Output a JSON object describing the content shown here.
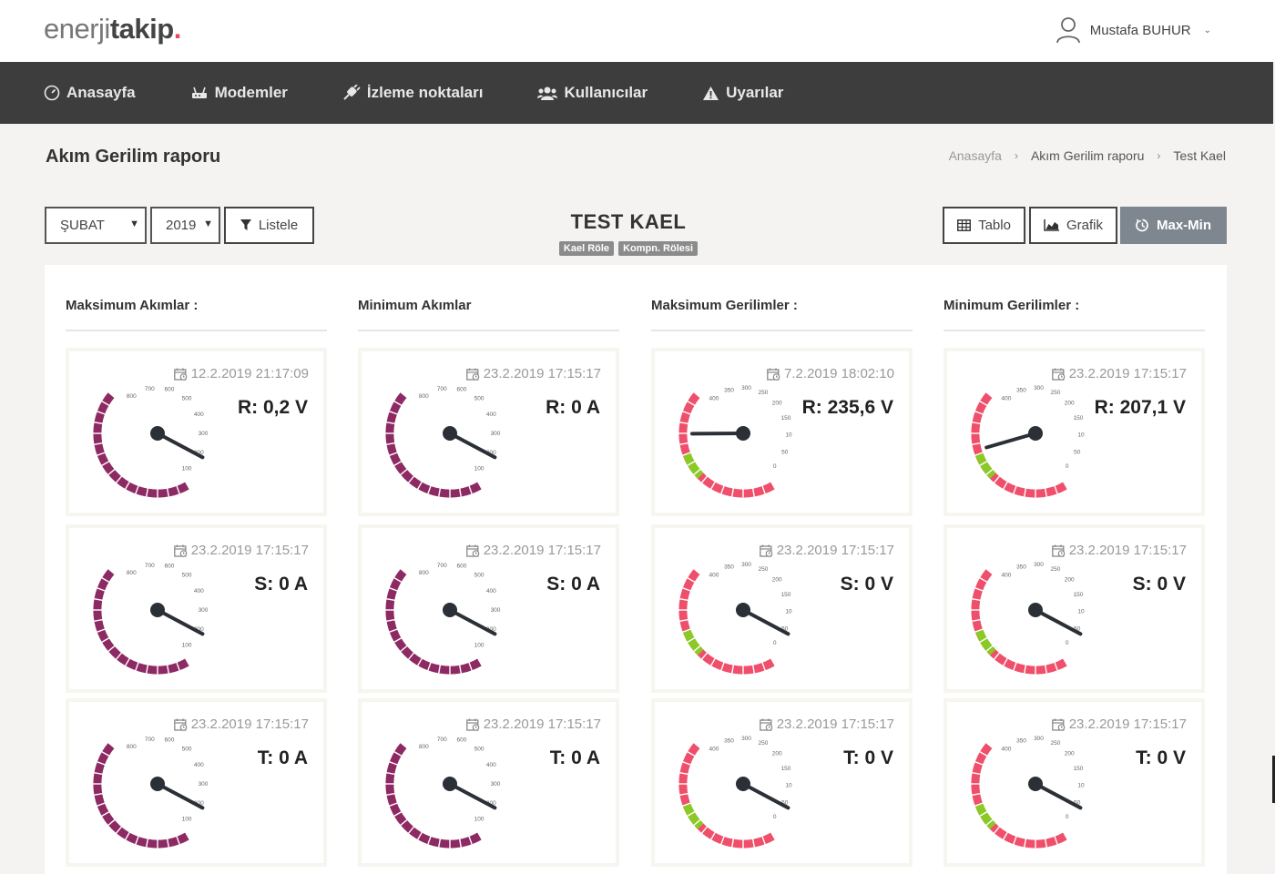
{
  "header": {
    "logo_light": "enerji",
    "logo_bold": "takip",
    "logo_dot": ".",
    "user_name": "Mustafa BUHUR"
  },
  "nav": [
    {
      "label": "Anasayfa",
      "icon": "dashboard-icon"
    },
    {
      "label": "Modemler",
      "icon": "modem-icon"
    },
    {
      "label": "İzleme noktaları",
      "icon": "plug-icon"
    },
    {
      "label": "Kullanıcılar",
      "icon": "users-icon"
    },
    {
      "label": "Uyarılar",
      "icon": "warning-icon"
    }
  ],
  "page": {
    "title": "Akım Gerilim raporu",
    "breadcrumb": [
      "Anasayfa",
      "Akım Gerilim raporu",
      "Test Kael"
    ]
  },
  "filters": {
    "month": "ŞUBAT",
    "year": "2019",
    "list_label": "Listele"
  },
  "report": {
    "title": "TEST KAEL",
    "badges": [
      "Kael Röle",
      "Kompn. Rölesi"
    ]
  },
  "views": {
    "table_label": "Tablo",
    "chart_label": "Grafik",
    "maxmin_label": "Max-Min"
  },
  "colors": {
    "current_gauge": "#8e2a63",
    "voltage_gauge": "#ef4f6b",
    "voltage_ok": "#8ac926",
    "needle": "#2b2f36"
  },
  "gauge_scales": {
    "current_ticks": [
      "800",
      "700",
      "600",
      "500",
      "400",
      "300",
      "200",
      "100"
    ],
    "voltage_ticks": [
      "400",
      "350",
      "300",
      "250",
      "200",
      "150",
      "10",
      "50",
      "0"
    ]
  },
  "columns": [
    {
      "title": "Maksimum Akımlar :",
      "type": "current",
      "cards": [
        {
          "date": "12.2.2019 21:17:09",
          "label": "R: 0,2 V",
          "reading": 0.2
        },
        {
          "date": "23.2.2019 17:15:17",
          "label": "S: 0 A",
          "reading": 0
        },
        {
          "date": "23.2.2019 17:15:17",
          "label": "T: 0 A",
          "reading": 0
        }
      ]
    },
    {
      "title": "Minimum Akımlar",
      "type": "current",
      "cards": [
        {
          "date": "23.2.2019 17:15:17",
          "label": "R: 0 A",
          "reading": 0
        },
        {
          "date": "23.2.2019 17:15:17",
          "label": "S: 0 A",
          "reading": 0
        },
        {
          "date": "23.2.2019 17:15:17",
          "label": "T: 0 A",
          "reading": 0
        }
      ]
    },
    {
      "title": "Maksimum Gerilimler :",
      "type": "voltage",
      "cards": [
        {
          "date": "7.2.2019 18:02:10",
          "label": "R: 235,6 V",
          "reading": 235.6
        },
        {
          "date": "23.2.2019 17:15:17",
          "label": "S: 0 V",
          "reading": 0
        },
        {
          "date": "23.2.2019 17:15:17",
          "label": "T: 0 V",
          "reading": 0
        }
      ]
    },
    {
      "title": "Minimum Gerilimler :",
      "type": "voltage",
      "cards": [
        {
          "date": "23.2.2019 17:15:17",
          "label": "R: 207,1 V",
          "reading": 207.1
        },
        {
          "date": "23.2.2019 17:15:17",
          "label": "S: 0 V",
          "reading": 0
        },
        {
          "date": "23.2.2019 17:15:17",
          "label": "T: 0 V",
          "reading": 0
        }
      ]
    }
  ]
}
